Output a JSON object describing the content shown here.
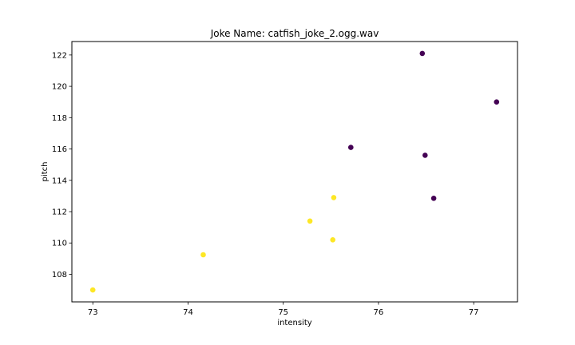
{
  "chart_data": {
    "type": "scatter",
    "title": "Joke Name: catfish_joke_2.ogg.wav",
    "xlabel": "intensity",
    "ylabel": "pitch",
    "xlim": [
      72.78,
      77.46
    ],
    "ylim": [
      106.24,
      122.86
    ],
    "xticks": [
      73,
      74,
      75,
      76,
      77
    ],
    "yticks": [
      108,
      110,
      112,
      114,
      116,
      118,
      120,
      122
    ],
    "grid": false,
    "colors": {
      "class_0": "#440154",
      "class_1": "#fde725"
    },
    "points": [
      {
        "x": 76.46,
        "y": 122.1,
        "class": 0
      },
      {
        "x": 77.24,
        "y": 119.0,
        "class": 0
      },
      {
        "x": 75.71,
        "y": 116.1,
        "class": 0
      },
      {
        "x": 76.49,
        "y": 115.6,
        "class": 0
      },
      {
        "x": 76.58,
        "y": 112.85,
        "class": 0
      },
      {
        "x": 75.53,
        "y": 112.9,
        "class": 1
      },
      {
        "x": 75.28,
        "y": 111.4,
        "class": 1
      },
      {
        "x": 75.52,
        "y": 110.2,
        "class": 1
      },
      {
        "x": 74.16,
        "y": 109.25,
        "class": 1
      },
      {
        "x": 73.0,
        "y": 107.0,
        "class": 1
      }
    ]
  }
}
